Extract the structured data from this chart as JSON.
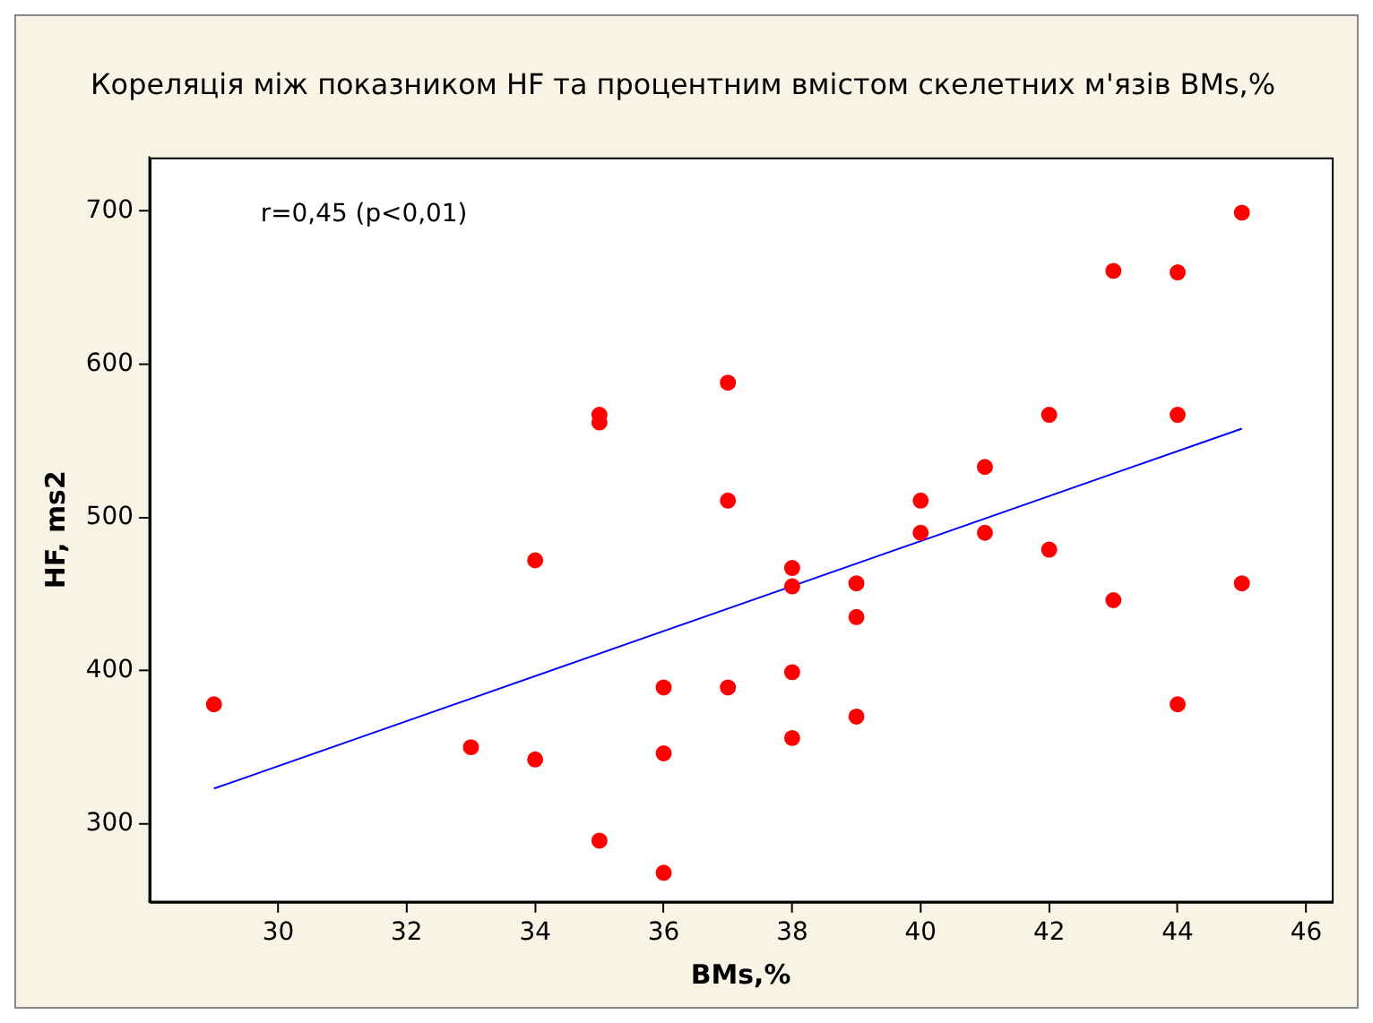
{
  "chart_data": {
    "type": "scatter",
    "title": "Кореляція між показником HF та процентним вмістом скелетних м'язів BMs,%",
    "xlabel": "BMs,%",
    "ylabel": "HF, ms2",
    "annotations": [
      "r=0,45 (p<0,01)"
    ],
    "xlim": [
      28,
      46.4
    ],
    "xticks": [
      30,
      32,
      34,
      36,
      38,
      40,
      42,
      44,
      46
    ],
    "ylim": [
      249,
      735
    ],
    "yticks": [
      300,
      400,
      500,
      600,
      700
    ],
    "grid": false,
    "marker": "circle",
    "series": [
      {
        "color": "#ff0000",
        "x": [
          29,
          33,
          34,
          34,
          35,
          35,
          35,
          36,
          36,
          36,
          37,
          37,
          37,
          38,
          38,
          38,
          38,
          39,
          39,
          39,
          40,
          40,
          41,
          41,
          42,
          42,
          43,
          43,
          44,
          44,
          44,
          45,
          45
        ],
        "values": [
          378,
          350,
          472,
          342,
          567,
          562,
          289,
          389,
          346,
          268,
          588,
          511,
          389,
          467,
          455,
          399,
          356,
          457,
          435,
          370,
          511,
          490,
          533,
          490,
          567,
          479,
          661,
          446,
          660,
          567,
          378,
          699,
          457
        ]
      },
      {
        "type": "line",
        "color": "#0000ff",
        "x": [
          29,
          45
        ],
        "values": [
          323,
          558
        ],
        "marker": "none",
        "line_style": "solid"
      }
    ]
  }
}
